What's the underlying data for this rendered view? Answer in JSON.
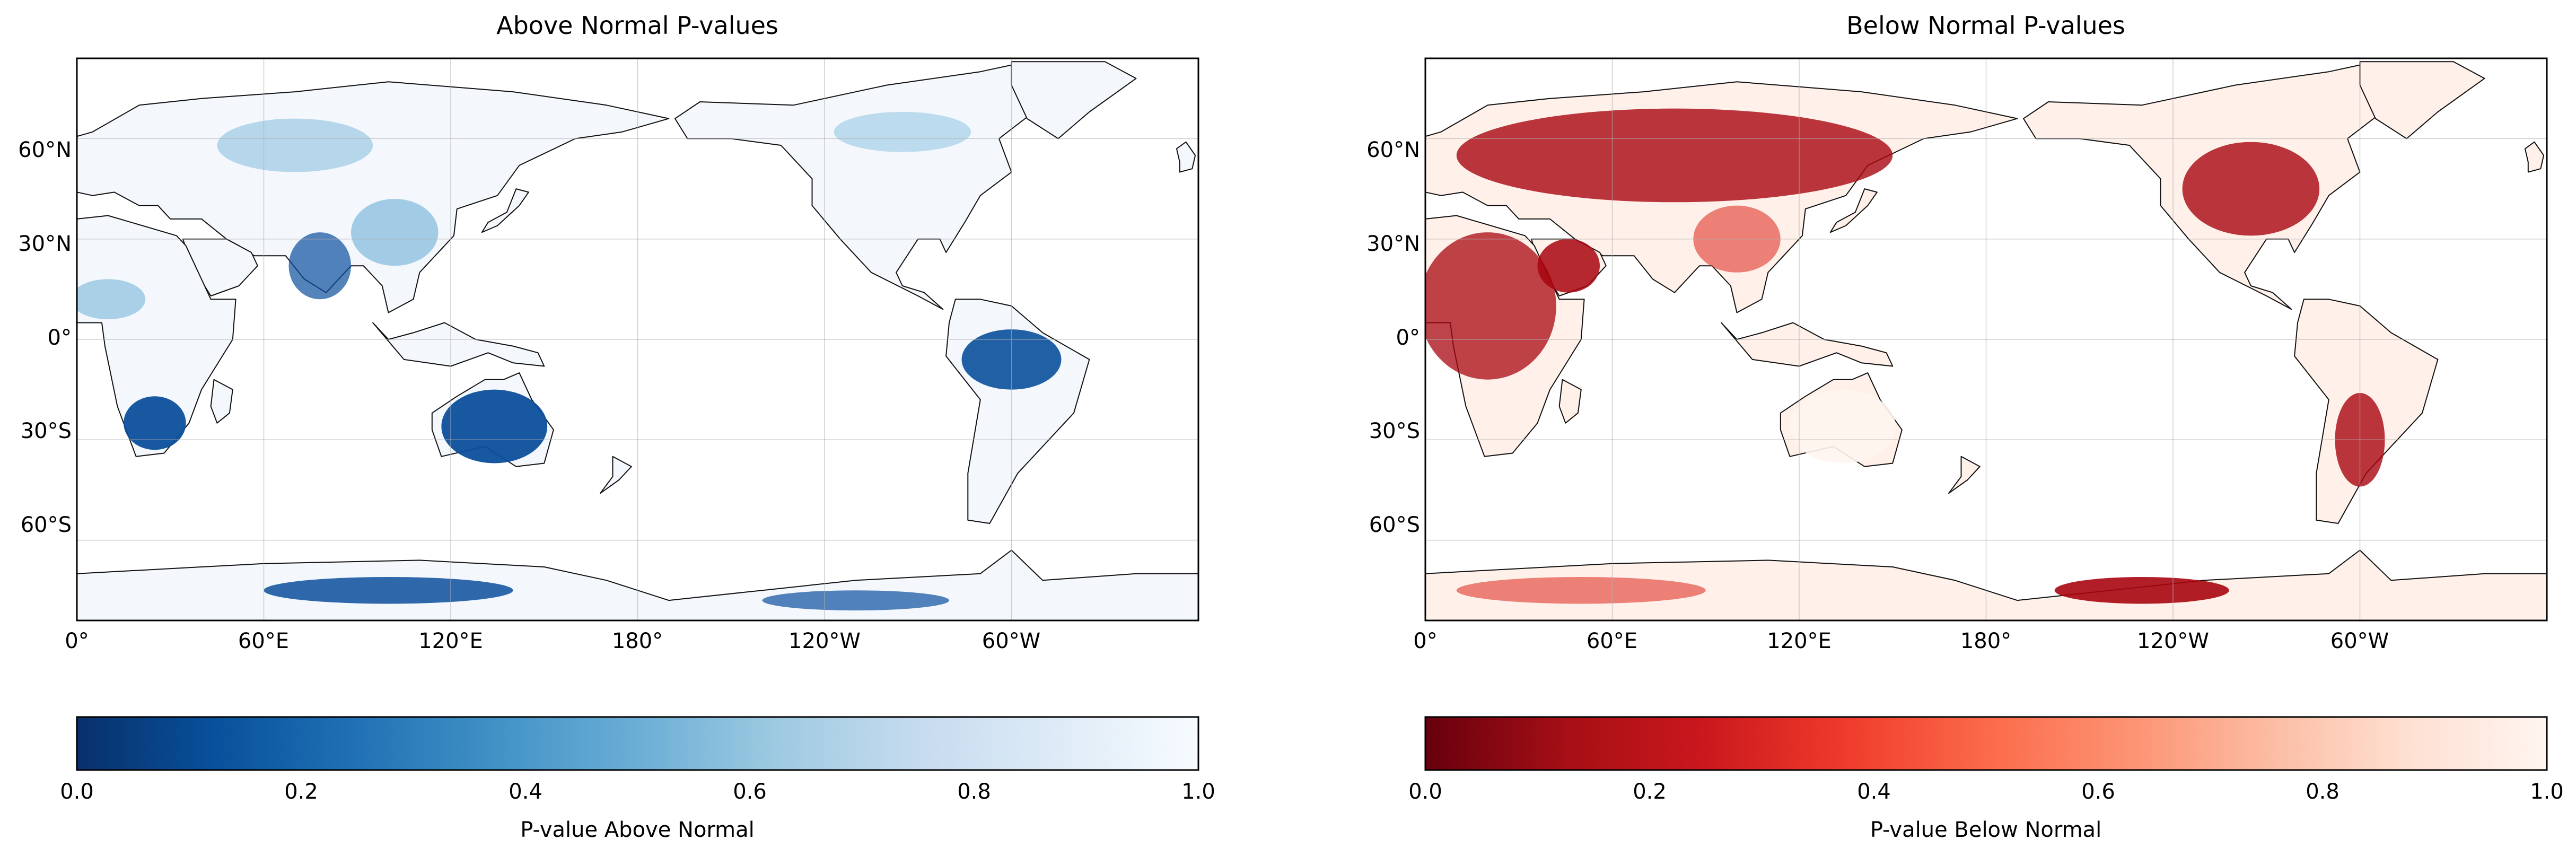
{
  "panels": [
    {
      "title": "Above Normal P-values",
      "colorbar_label": "P-value Above Normal",
      "cmap": [
        "#f7fbff",
        "#deebf7",
        "#c6dbef",
        "#9ecae1",
        "#6baed6",
        "#4292c6",
        "#2171b5",
        "#08519c",
        "#08306b"
      ],
      "cmap_reversed": true,
      "land_fill": "#f4f8fd",
      "land_dark": "#0b4f9c",
      "land_mid": "#6baed6"
    },
    {
      "title": "Below Normal P-values",
      "colorbar_label": "P-value Below Normal",
      "cmap": [
        "#fff5f0",
        "#fee0d2",
        "#fcbba1",
        "#fc9272",
        "#fb6a4a",
        "#ef3b2c",
        "#cb181d",
        "#a50f15",
        "#67000d"
      ],
      "cmap_reversed": true,
      "land_fill": "#fff1ea",
      "land_dark": "#a8050f",
      "land_mid": "#e03428"
    }
  ],
  "map_axes": {
    "x_ticks": [
      "0°",
      "60°E",
      "120°E",
      "180°",
      "120°W",
      "60°W"
    ],
    "y_ticks": [
      "60°N",
      "30°N",
      "0°",
      "30°S",
      "60°S"
    ]
  },
  "colorbar_ticks": [
    "0.0",
    "0.2",
    "0.4",
    "0.6",
    "0.8",
    "1.0"
  ],
  "colorbar_range": [
    0.0,
    1.0
  ]
}
